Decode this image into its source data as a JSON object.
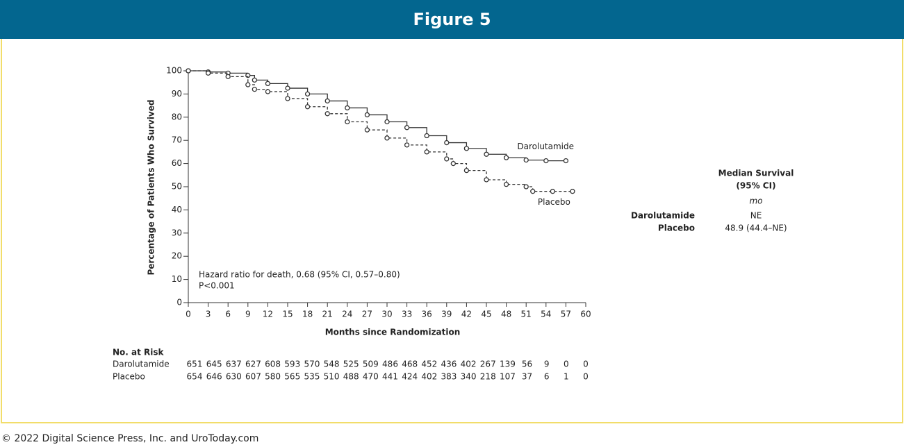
{
  "header": "Figure 5",
  "footer": "© 2022 Digital Science Press, Inc. and UroToday.com",
  "chart_data": {
    "type": "line",
    "step": true,
    "x_label": "Months since Randomization",
    "y_label": "Percentage of Patients Who Survived",
    "annotations": [
      "Hazard ratio for death, 0.68 (95% CI, 0.57–0.80)",
      "P<0.001"
    ],
    "xlim": [
      0,
      60
    ],
    "xticks": [
      0,
      3,
      6,
      9,
      12,
      15,
      18,
      21,
      24,
      27,
      30,
      33,
      36,
      39,
      42,
      45,
      48,
      51,
      54,
      57,
      60
    ],
    "ylim": [
      0,
      100
    ],
    "yticks": [
      0,
      10,
      20,
      30,
      40,
      50,
      60,
      70,
      80,
      90,
      100
    ],
    "series": [
      {
        "name": "Darolutamide",
        "color": "#333333",
        "style": "solid",
        "x": [
          0,
          3,
          6,
          9,
          10,
          12,
          15,
          18,
          21,
          24,
          27,
          30,
          33,
          36,
          39,
          42,
          45,
          48,
          51,
          54,
          57
        ],
        "values": [
          100,
          99.5,
          99,
          98,
          96,
          94.5,
          92.5,
          90,
          87,
          84,
          81,
          78,
          75.5,
          72,
          69,
          66.5,
          64,
          62.5,
          61.5,
          61.2,
          61.2
        ]
      },
      {
        "name": "Placebo",
        "color": "#333333",
        "style": "dashed",
        "x": [
          0,
          3,
          6,
          9,
          10,
          12,
          15,
          18,
          21,
          24,
          27,
          30,
          33,
          36,
          39,
          40,
          42,
          45,
          48,
          51,
          52,
          55,
          58
        ],
        "values": [
          100,
          99,
          97.5,
          94,
          92,
          91,
          88,
          84.5,
          81.5,
          78,
          74.5,
          71,
          68,
          65,
          62,
          60,
          57,
          53,
          51,
          50,
          48,
          48,
          48
        ]
      }
    ],
    "at_risk": {
      "title": "No. at Risk",
      "rows": [
        {
          "name": "Darolutamide",
          "values": [
            651,
            645,
            637,
            627,
            608,
            593,
            570,
            548,
            525,
            509,
            486,
            468,
            452,
            436,
            402,
            267,
            139,
            56,
            9,
            0,
            0
          ]
        },
        {
          "name": "Placebo",
          "values": [
            654,
            646,
            630,
            607,
            580,
            565,
            535,
            510,
            488,
            470,
            441,
            424,
            402,
            383,
            340,
            218,
            107,
            37,
            6,
            1,
            0
          ]
        }
      ]
    }
  },
  "median_table": {
    "header": [
      "Median Survival",
      "(95% CI)"
    ],
    "unit": "mo",
    "rows": [
      {
        "name": "Darolutamide",
        "value": "NE"
      },
      {
        "name": "Placebo",
        "value": "48.9 (44.4–NE)"
      }
    ]
  }
}
